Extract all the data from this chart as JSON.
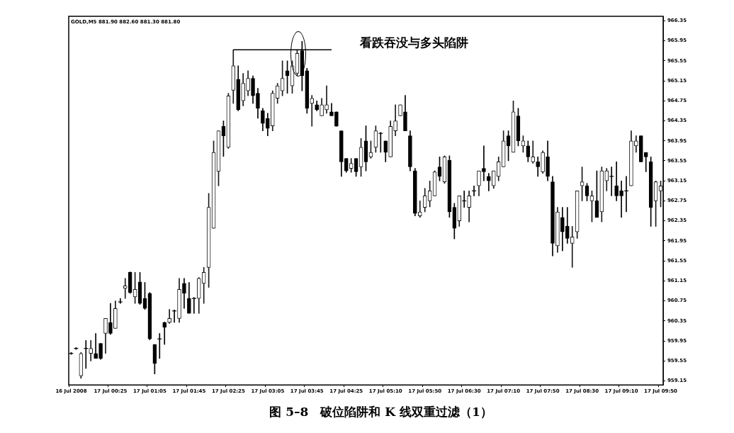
{
  "chart_data": {
    "type": "candlestick",
    "title": "图 5–8　破位陷阱和 K 线双重过滤（1）",
    "categories": [
      "16 Jul 2008",
      null,
      null,
      null,
      null,
      null,
      null,
      null,
      "17 Jul 00:25",
      null,
      null,
      null,
      null,
      null,
      null,
      null,
      "17 Jul 01:05",
      null,
      null,
      null,
      null,
      null,
      null,
      null,
      "17 Jul 01:45",
      null,
      null,
      null,
      null,
      null,
      null,
      null,
      "17 Jul 02:25",
      null,
      null,
      null,
      null,
      null,
      null,
      null,
      "17 Jul 03:05",
      null,
      null,
      null,
      null,
      null,
      null,
      null,
      "17 Jul 03:45",
      null,
      null,
      null,
      null,
      null,
      null,
      null,
      "17 Jul 04:25",
      null,
      null,
      null,
      null,
      null,
      null,
      null,
      "17 Jul 05:10",
      null,
      null,
      null,
      null,
      null,
      null,
      null,
      "17 Jul 05:50",
      null,
      null,
      null,
      null,
      null,
      null,
      null,
      "17 Jul 06:30",
      null,
      null,
      null,
      null,
      null,
      null,
      null,
      "17 Jul 07:10",
      null,
      null,
      null,
      null,
      null,
      null,
      null,
      "17 Jul 07:50",
      null,
      null,
      null,
      null,
      null,
      null,
      null,
      "17 Jul 08:30",
      null,
      null,
      null,
      null,
      null,
      null,
      null,
      "17 Jul 09:10",
      null,
      null,
      null,
      null,
      null,
      null,
      null,
      "17 Jul 09:50"
    ],
    "ohlc": [
      [
        959.7,
        959.72,
        959.68,
        959.7
      ],
      [
        959.8,
        959.82,
        959.78,
        959.8
      ],
      [
        959.25,
        959.72,
        959.2,
        959.7
      ],
      [
        959.8,
        959.96,
        959.4,
        959.8
      ],
      [
        959.7,
        959.96,
        959.55,
        959.8
      ],
      [
        959.7,
        960.1,
        959.6,
        959.6
      ],
      [
        959.9,
        959.9,
        959.58,
        959.6
      ],
      [
        960.1,
        960.4,
        959.7,
        960.4
      ],
      [
        960.32,
        960.7,
        960.08,
        960.1
      ],
      [
        960.2,
        960.75,
        960.2,
        960.6
      ],
      [
        960.73,
        960.8,
        960.7,
        960.73
      ],
      [
        961.0,
        961.2,
        960.8,
        961.05
      ],
      [
        961.32,
        961.33,
        960.9,
        960.92
      ],
      [
        960.83,
        961.32,
        960.7,
        960.98
      ],
      [
        961.13,
        961.32,
        960.68,
        960.7
      ],
      [
        960.8,
        961.12,
        960.58,
        960.6
      ],
      [
        960.9,
        960.92,
        959.97,
        959.99
      ],
      [
        959.88,
        959.88,
        959.29,
        959.5
      ],
      [
        959.99,
        960.1,
        959.6,
        959.99
      ],
      [
        960.32,
        960.33,
        959.88,
        960.22
      ],
      [
        960.32,
        960.58,
        960.3,
        960.4
      ],
      [
        960.55,
        960.57,
        960.32,
        960.55
      ],
      [
        960.4,
        961.2,
        960.32,
        960.98
      ],
      [
        961.1,
        961.2,
        960.6,
        960.9
      ],
      [
        960.8,
        961.12,
        960.5,
        960.5
      ],
      [
        960.8,
        960.82,
        960.5,
        960.8
      ],
      [
        960.8,
        961.22,
        960.5,
        961.2
      ],
      [
        961.1,
        961.42,
        960.7,
        961.32
      ],
      [
        961.42,
        962.9,
        961.02,
        962.62
      ],
      [
        962.2,
        963.95,
        962.2,
        963.72
      ],
      [
        963.34,
        964.15,
        963.05,
        964.15
      ],
      [
        964.24,
        964.35,
        963.64,
        964.05
      ],
      [
        963.82,
        964.9,
        963.8,
        964.85
      ],
      [
        964.96,
        965.77,
        964.7,
        965.45
      ],
      [
        965.18,
        965.45,
        964.55,
        964.57
      ],
      [
        964.75,
        965.3,
        964.65,
        965.1
      ],
      [
        964.95,
        965.35,
        964.85,
        965.2
      ],
      [
        965.2,
        965.25,
        964.7,
        964.85
      ],
      [
        964.9,
        965.0,
        964.4,
        964.6
      ],
      [
        964.55,
        964.6,
        964.15,
        964.3
      ],
      [
        964.4,
        964.5,
        964.05,
        964.2
      ],
      [
        964.25,
        964.95,
        964.15,
        964.9
      ],
      [
        964.8,
        965.1,
        964.7,
        965.05
      ],
      [
        964.95,
        965.55,
        964.85,
        965.2
      ],
      [
        965.35,
        965.55,
        964.9,
        965.25
      ],
      [
        965.05,
        965.55,
        964.9,
        965.45
      ],
      [
        965.3,
        965.77,
        965.25,
        965.7
      ],
      [
        965.75,
        965.94,
        964.95,
        965.25
      ],
      [
        965.35,
        965.4,
        964.5,
        964.6
      ],
      [
        964.7,
        964.86,
        964.24,
        964.8
      ],
      [
        964.67,
        964.75,
        964.55,
        964.57
      ],
      [
        964.45,
        964.8,
        964.45,
        964.67
      ],
      [
        964.57,
        965.05,
        964.5,
        964.67
      ],
      [
        964.53,
        964.7,
        964.45,
        964.45
      ],
      [
        964.53,
        964.53,
        964.24,
        964.24
      ],
      [
        964.15,
        964.15,
        963.24,
        963.53
      ],
      [
        963.6,
        963.6,
        963.32,
        963.35
      ],
      [
        963.4,
        963.6,
        963.32,
        963.5
      ],
      [
        963.6,
        963.6,
        963.24,
        963.33
      ],
      [
        963.43,
        964.0,
        963.24,
        963.82
      ],
      [
        963.95,
        964.25,
        963.35,
        963.53
      ],
      [
        963.63,
        963.95,
        963.6,
        963.72
      ],
      [
        963.82,
        964.25,
        963.72,
        964.15
      ],
      [
        964.1,
        964.12,
        963.72,
        964.1
      ],
      [
        963.95,
        963.95,
        963.53,
        963.72
      ],
      [
        963.63,
        964.35,
        963.63,
        964.24
      ],
      [
        964.15,
        964.67,
        964.05,
        964.35
      ],
      [
        964.45,
        964.67,
        964.45,
        964.67
      ],
      [
        964.53,
        964.86,
        964.15,
        964.15
      ],
      [
        964.05,
        964.15,
        963.35,
        963.43
      ],
      [
        963.35,
        963.4,
        962.45,
        962.5
      ],
      [
        962.45,
        962.75,
        962.42,
        962.53
      ],
      [
        962.62,
        963.0,
        962.53,
        962.85
      ],
      [
        962.75,
        963.15,
        962.63,
        962.95
      ],
      [
        962.85,
        963.35,
        962.85,
        963.33
      ],
      [
        963.43,
        963.63,
        963.15,
        963.24
      ],
      [
        963.13,
        963.65,
        963.1,
        963.63
      ],
      [
        963.56,
        963.65,
        962.42,
        962.53
      ],
      [
        962.62,
        962.7,
        961.99,
        962.2
      ],
      [
        962.35,
        962.85,
        962.24,
        962.85
      ],
      [
        962.75,
        962.95,
        962.62,
        962.75
      ],
      [
        962.62,
        962.95,
        962.33,
        962.85
      ],
      [
        962.95,
        963.05,
        962.85,
        962.95
      ],
      [
        963.05,
        963.35,
        962.85,
        963.35
      ],
      [
        963.4,
        963.85,
        963.15,
        963.33
      ],
      [
        963.24,
        963.3,
        962.95,
        963.15
      ],
      [
        963.05,
        963.35,
        963.0,
        963.35
      ],
      [
        963.24,
        963.63,
        963.15,
        963.53
      ],
      [
        963.43,
        964.15,
        963.43,
        963.95
      ],
      [
        964.05,
        964.15,
        963.55,
        963.85
      ],
      [
        963.72,
        964.75,
        963.72,
        964.53
      ],
      [
        964.45,
        964.6,
        963.85,
        963.95
      ],
      [
        963.85,
        964.05,
        963.72,
        963.95
      ],
      [
        963.85,
        963.95,
        963.53,
        963.63
      ],
      [
        963.53,
        963.95,
        963.5,
        963.63
      ],
      [
        963.53,
        963.63,
        963.24,
        963.43
      ],
      [
        963.33,
        963.75,
        963.3,
        963.72
      ],
      [
        963.63,
        963.95,
        963.15,
        963.24
      ],
      [
        963.13,
        963.24,
        961.65,
        961.9
      ],
      [
        961.85,
        962.62,
        961.72,
        962.53
      ],
      [
        962.42,
        962.62,
        961.75,
        962.13
      ],
      [
        962.24,
        962.62,
        961.9,
        962.0
      ],
      [
        961.9,
        962.24,
        961.42,
        962.03
      ],
      [
        962.13,
        962.95,
        962.0,
        962.95
      ],
      [
        963.05,
        963.43,
        962.75,
        963.13
      ],
      [
        963.05,
        963.1,
        962.75,
        962.85
      ],
      [
        962.75,
        962.95,
        962.33,
        962.85
      ],
      [
        962.75,
        963.35,
        962.42,
        962.42
      ],
      [
        962.53,
        963.43,
        962.33,
        963.35
      ],
      [
        963.15,
        963.4,
        962.95,
        963.35
      ],
      [
        963.24,
        963.43,
        962.85,
        963.24
      ],
      [
        963.05,
        963.53,
        962.75,
        962.85
      ],
      [
        962.95,
        963.15,
        962.42,
        962.85
      ],
      [
        962.95,
        963.24,
        962.53,
        962.95
      ],
      [
        963.05,
        964.15,
        963.05,
        963.95
      ],
      [
        963.85,
        964.05,
        963.72,
        963.95
      ],
      [
        964.05,
        964.05,
        963.53,
        963.53
      ],
      [
        963.72,
        963.72,
        963.33,
        963.63
      ],
      [
        963.53,
        963.63,
        962.24,
        962.62
      ],
      [
        962.75,
        963.15,
        962.24,
        963.13
      ],
      [
        962.95,
        963.15,
        962.63,
        963.05
      ]
    ],
    "series": [
      {
        "type": "line",
        "color": "#000000",
        "values": [
          null,
          null,
          null,
          null,
          null,
          null,
          null,
          null,
          null,
          null,
          null,
          null,
          null,
          null,
          null,
          null,
          null,
          null,
          null,
          null,
          null,
          null,
          null,
          null,
          null,
          null,
          null,
          null,
          null,
          null,
          null,
          null,
          null,
          965.77,
          965.77,
          965.77,
          965.77,
          965.77,
          965.77,
          965.77,
          965.77,
          965.77,
          965.77,
          965.77,
          965.77,
          965.77,
          965.77,
          965.77,
          965.77,
          965.77,
          965.77,
          965.77,
          965.77,
          965.77,
          null,
          null,
          null,
          null,
          null,
          null,
          null,
          null,
          null,
          null,
          null,
          null,
          null,
          null,
          null,
          null,
          null,
          null,
          null,
          null,
          null,
          null,
          null,
          null,
          null,
          null,
          null,
          null,
          null,
          null,
          null,
          null,
          null,
          null,
          null,
          null,
          null,
          null,
          null,
          null,
          null,
          null,
          null,
          null,
          null,
          null,
          null,
          null,
          null,
          null,
          null,
          null,
          null,
          null,
          null,
          null,
          null,
          null,
          null,
          null,
          null,
          null,
          null,
          null,
          null,
          null,
          null
        ]
      }
    ],
    "ylim": [
      959.07,
      966.44
    ],
    "yticks": [
      {
        "value": 966.35,
        "label": "966.35"
      },
      {
        "value": 965.95,
        "label": "965.95"
      },
      {
        "value": 965.55,
        "label": "965.55"
      },
      {
        "value": 965.15,
        "label": "965.15"
      },
      {
        "value": 964.75,
        "label": "964.75"
      },
      {
        "value": 964.35,
        "label": "964.35"
      },
      {
        "value": 963.95,
        "label": "963.95"
      },
      {
        "value": 963.55,
        "label": "963.55"
      },
      {
        "value": 963.15,
        "label": "963.15"
      },
      {
        "value": 962.75,
        "label": "962.75"
      },
      {
        "value": 962.35,
        "label": "962.35"
      },
      {
        "value": 961.95,
        "label": "961.95"
      },
      {
        "value": 961.55,
        "label": "961.55"
      },
      {
        "value": 961.15,
        "label": "961.15"
      },
      {
        "value": 960.75,
        "label": "960.75"
      },
      {
        "value": 960.35,
        "label": "960.35"
      },
      {
        "value": 959.95,
        "label": "959.95"
      },
      {
        "value": 959.55,
        "label": "959.55"
      },
      {
        "value": 959.15,
        "label": "959.15"
      }
    ],
    "annotations": [
      "GOLD,M5 881.90 882.60 881.30 881.80",
      "看跌吞没与多头陷阱"
    ],
    "grid": false,
    "legend": false
  }
}
